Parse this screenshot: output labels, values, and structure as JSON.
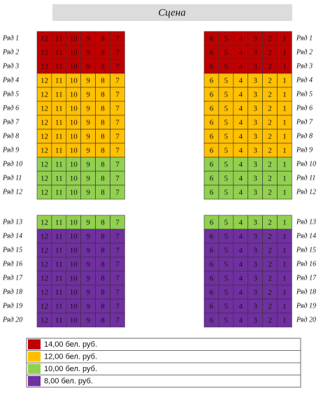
{
  "stage": "Сцена",
  "left_seats": [
    "12",
    "11",
    "10",
    "9",
    "8",
    "7"
  ],
  "right_seats": [
    "6",
    "5",
    "4",
    "3",
    "2",
    "1"
  ],
  "prices": [
    {
      "color": "#c00000",
      "label": "14,00 бел. руб."
    },
    {
      "color": "#ffc000",
      "label": "12,00 бел. руб."
    },
    {
      "color": "#92d050",
      "label": "10,00 бел. руб."
    },
    {
      "color": "#7030a0",
      "label": "8,00 бел. руб."
    }
  ],
  "sections": [
    {
      "rows": [
        {
          "label": "Ряд 1",
          "price": 0
        },
        {
          "label": "Ряд 2",
          "price": 0
        },
        {
          "label": "Ряд 3",
          "price": 0
        },
        {
          "label": "Ряд 4",
          "price": 1
        },
        {
          "label": "Ряд 5",
          "price": 1
        },
        {
          "label": "Ряд 6",
          "price": 1
        },
        {
          "label": "Ряд 7",
          "price": 1
        },
        {
          "label": "Ряд 8",
          "price": 1
        },
        {
          "label": "Ряд 9",
          "price": 1
        },
        {
          "label": "Ряд 10",
          "price": 2
        },
        {
          "label": "Ряд 11",
          "price": 2
        },
        {
          "label": "Ряд 12",
          "price": 2
        }
      ]
    },
    {
      "rows": [
        {
          "label": "Ряд 13",
          "price": 2
        },
        {
          "label": "Ряд 14",
          "price": 3
        },
        {
          "label": "Ряд 15",
          "price": 3
        },
        {
          "label": "Ряд 16",
          "price": 3
        },
        {
          "label": "Ряд 17",
          "price": 3
        },
        {
          "label": "Ряд 18",
          "price": 3
        },
        {
          "label": "Ряд 19",
          "price": 3
        },
        {
          "label": "Ряд 20",
          "price": 3
        }
      ]
    }
  ]
}
